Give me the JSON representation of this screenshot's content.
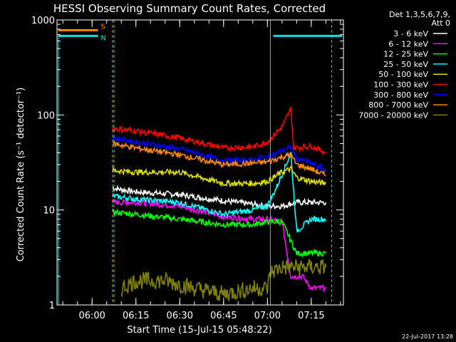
{
  "chart_data": {
    "type": "line",
    "title": "HESSI Observing Summary Count Rates, Corrected",
    "xlabel": "Start Time (15-Jul-15 05:48:22)",
    "ylabel": "Corrected Count Rate (s⁻¹ detector⁻¹)",
    "yscale": "log",
    "ylim": [
      1,
      1000
    ],
    "xlim_minutes": [
      "05:48",
      "07:26"
    ],
    "x_tick_labels": [
      "06:00",
      "06:15",
      "06:30",
      "06:45",
      "07:00",
      "07:15"
    ],
    "y_tick_labels": [
      "1",
      "10",
      "100",
      "1000"
    ],
    "legend_header": [
      "Det 1,3,5,6,7,9,",
      "Att 0"
    ],
    "legend_position": "right",
    "timestamp": "22-Jul-2017 13:28",
    "flags": [
      {
        "label": "S",
        "color": "#ff8800"
      },
      {
        "label": "N",
        "color": "#00e5e5"
      }
    ],
    "series": [
      {
        "name": "3 - 6 keV",
        "color": "#ffffff",
        "points": [
          [
            "06:07",
            17
          ],
          [
            "06:15",
            15.5
          ],
          [
            "06:30",
            14.5
          ],
          [
            "06:45",
            12.5
          ],
          [
            "06:55",
            11.5
          ],
          [
            "07:00",
            11
          ],
          [
            "07:05",
            11
          ],
          [
            "07:10",
            12
          ],
          [
            "07:15",
            12
          ],
          [
            "07:20",
            12
          ]
        ]
      },
      {
        "name": "6 - 12 keV",
        "color": "#ff00ff",
        "points": [
          [
            "06:07",
            12
          ],
          [
            "06:15",
            12
          ],
          [
            "06:30",
            11
          ],
          [
            "06:45",
            8.5
          ],
          [
            "06:55",
            8
          ],
          [
            "07:00",
            8
          ],
          [
            "07:05",
            7.5
          ],
          [
            "07:08",
            2
          ],
          [
            "07:12",
            2
          ],
          [
            "07:15",
            1.5
          ],
          [
            "07:20",
            1.5
          ]
        ]
      },
      {
        "name": "12 - 25 keV",
        "color": "#00ff00",
        "points": [
          [
            "06:07",
            9.5
          ],
          [
            "06:15",
            9
          ],
          [
            "06:30",
            8
          ],
          [
            "06:45",
            7
          ],
          [
            "06:55",
            7
          ],
          [
            "07:00",
            7.5
          ],
          [
            "07:05",
            7.5
          ],
          [
            "07:10",
            3.5
          ],
          [
            "07:15",
            3.5
          ],
          [
            "07:20",
            3.5
          ]
        ]
      },
      {
        "name": "25 - 50 keV",
        "color": "#00ffff",
        "points": [
          [
            "06:07",
            14
          ],
          [
            "06:15",
            13
          ],
          [
            "06:30",
            12
          ],
          [
            "06:45",
            9
          ],
          [
            "06:55",
            10
          ],
          [
            "07:00",
            11
          ],
          [
            "07:03",
            17
          ],
          [
            "07:06",
            28
          ],
          [
            "07:08",
            40
          ],
          [
            "07:10",
            6
          ],
          [
            "07:15",
            8
          ],
          [
            "07:20",
            8
          ]
        ]
      },
      {
        "name": "50 - 100 keV",
        "color": "#e0e000",
        "points": [
          [
            "06:07",
            26
          ],
          [
            "06:15",
            25
          ],
          [
            "06:30",
            25
          ],
          [
            "06:45",
            19
          ],
          [
            "06:55",
            19
          ],
          [
            "07:00",
            20
          ],
          [
            "07:05",
            25
          ],
          [
            "07:08",
            27
          ],
          [
            "07:10",
            22
          ],
          [
            "07:15",
            20
          ],
          [
            "07:20",
            19
          ]
        ]
      },
      {
        "name": "100 - 300 keV",
        "color": "#ff0000",
        "points": [
          [
            "06:07",
            72
          ],
          [
            "06:15",
            68
          ],
          [
            "06:30",
            57
          ],
          [
            "06:45",
            45
          ],
          [
            "06:55",
            46
          ],
          [
            "07:00",
            52
          ],
          [
            "07:05",
            75
          ],
          [
            "07:08",
            115
          ],
          [
            "07:09",
            45
          ],
          [
            "07:15",
            47
          ],
          [
            "07:20",
            40
          ]
        ]
      },
      {
        "name": "300 - 800 keV",
        "color": "#0000ff",
        "points": [
          [
            "06:07",
            57
          ],
          [
            "06:15",
            52
          ],
          [
            "06:30",
            44
          ],
          [
            "06:45",
            33
          ],
          [
            "06:55",
            34
          ],
          [
            "07:00",
            36
          ],
          [
            "07:05",
            42
          ],
          [
            "07:08",
            46
          ],
          [
            "07:10",
            35
          ],
          [
            "07:15",
            31
          ],
          [
            "07:20",
            26
          ]
        ]
      },
      {
        "name": "800 - 7000 keV",
        "color": "#ff8800",
        "points": [
          [
            "06:07",
            50
          ],
          [
            "06:15",
            45
          ],
          [
            "06:30",
            38
          ],
          [
            "06:45",
            30
          ],
          [
            "06:55",
            31
          ],
          [
            "07:00",
            32
          ],
          [
            "07:05",
            36
          ],
          [
            "07:08",
            38
          ],
          [
            "07:10",
            30
          ],
          [
            "07:15",
            27
          ],
          [
            "07:20",
            23
          ]
        ]
      },
      {
        "name": "7000 - 20000 keV",
        "color": "#808000",
        "points": [
          [
            "06:10",
            1.5
          ],
          [
            "06:15",
            1.8
          ],
          [
            "06:25",
            1.8
          ],
          [
            "06:35",
            1.5
          ],
          [
            "06:45",
            1.3
          ],
          [
            "06:55",
            1.5
          ],
          [
            "07:00",
            1.5
          ],
          [
            "07:01",
            2.2
          ],
          [
            "07:05",
            2.5
          ],
          [
            "07:15",
            2.5
          ],
          [
            "07:20",
            2.5
          ]
        ]
      }
    ]
  }
}
